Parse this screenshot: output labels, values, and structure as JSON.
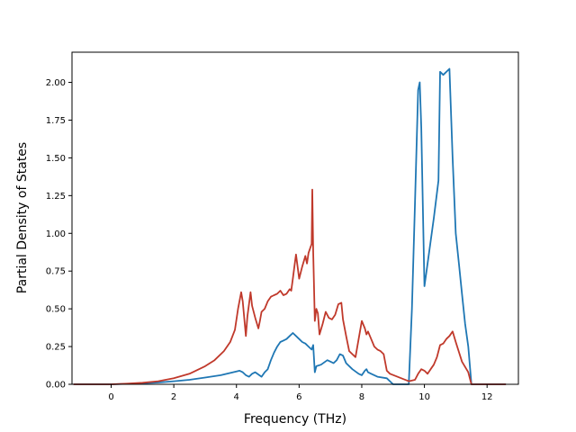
{
  "chart_data": {
    "type": "line",
    "title": "",
    "xlabel": "Frequency (THz)",
    "ylabel": "Partial Density of States",
    "xlim": [
      -1.25,
      13.0
    ],
    "ylim": [
      0.0,
      2.2
    ],
    "xticks": [
      0,
      2,
      4,
      6,
      8,
      10,
      12
    ],
    "xtick_labels": [
      "0",
      "2",
      "4",
      "6",
      "8",
      "10",
      "12"
    ],
    "yticks": [
      0.0,
      0.25,
      0.5,
      0.75,
      1.0,
      1.25,
      1.5,
      1.75,
      2.0
    ],
    "ytick_labels": [
      "0.00",
      "0.25",
      "0.50",
      "0.75",
      "1.00",
      "1.25",
      "1.50",
      "1.75",
      "2.00"
    ],
    "grid": false,
    "series": [
      {
        "color": "#1f77b4",
        "x": [
          -1.2,
          0.0,
          0.5,
          1.0,
          1.5,
          2.0,
          2.5,
          3.0,
          3.5,
          3.8,
          4.0,
          4.1,
          4.2,
          4.3,
          4.4,
          4.5,
          4.6,
          4.7,
          4.8,
          4.9,
          5.0,
          5.1,
          5.2,
          5.3,
          5.4,
          5.5,
          5.6,
          5.7,
          5.8,
          5.9,
          6.0,
          6.1,
          6.2,
          6.3,
          6.4,
          6.45,
          6.5,
          6.55,
          6.7,
          6.9,
          7.0,
          7.1,
          7.2,
          7.3,
          7.4,
          7.5,
          7.7,
          7.9,
          8.0,
          8.1,
          8.15,
          8.2,
          8.3,
          8.5,
          8.8,
          9.0,
          9.3,
          9.5,
          9.6,
          9.7,
          9.8,
          9.85,
          9.9,
          10.0,
          10.1,
          10.3,
          10.45,
          10.5,
          10.6,
          10.75,
          10.8,
          10.9,
          11.0,
          11.1,
          11.2,
          11.3,
          11.4,
          11.5,
          12.6
        ],
        "y": [
          0.0,
          0.0,
          0.003,
          0.007,
          0.012,
          0.02,
          0.03,
          0.045,
          0.06,
          0.075,
          0.085,
          0.09,
          0.08,
          0.06,
          0.05,
          0.07,
          0.08,
          0.065,
          0.05,
          0.08,
          0.1,
          0.16,
          0.21,
          0.25,
          0.28,
          0.29,
          0.3,
          0.32,
          0.34,
          0.32,
          0.3,
          0.28,
          0.27,
          0.25,
          0.23,
          0.26,
          0.08,
          0.12,
          0.13,
          0.16,
          0.15,
          0.14,
          0.16,
          0.2,
          0.19,
          0.14,
          0.1,
          0.07,
          0.06,
          0.09,
          0.1,
          0.08,
          0.07,
          0.05,
          0.04,
          0.0,
          0.0,
          0.0,
          0.5,
          1.2,
          1.95,
          2.0,
          1.7,
          0.65,
          0.8,
          1.1,
          1.35,
          2.07,
          2.05,
          2.08,
          2.09,
          1.5,
          1.0,
          0.8,
          0.6,
          0.4,
          0.25,
          0.0,
          0.0
        ]
      },
      {
        "color": "#c0392b",
        "x": [
          -1.2,
          0.0,
          0.5,
          1.0,
          1.5,
          2.0,
          2.5,
          3.0,
          3.3,
          3.6,
          3.8,
          3.95,
          4.05,
          4.15,
          4.2,
          4.3,
          4.35,
          4.45,
          4.5,
          4.6,
          4.7,
          4.75,
          4.8,
          4.9,
          5.0,
          5.1,
          5.2,
          5.3,
          5.4,
          5.5,
          5.6,
          5.7,
          5.75,
          5.8,
          5.85,
          5.9,
          6.0,
          6.1,
          6.2,
          6.25,
          6.3,
          6.4,
          6.42,
          6.45,
          6.5,
          6.55,
          6.6,
          6.65,
          6.75,
          6.85,
          6.95,
          7.05,
          7.15,
          7.25,
          7.35,
          7.4,
          7.5,
          7.6,
          7.7,
          7.8,
          7.9,
          8.0,
          8.1,
          8.15,
          8.2,
          8.3,
          8.4,
          8.5,
          8.6,
          8.7,
          8.8,
          8.9,
          9.5,
          9.7,
          9.8,
          9.9,
          10.0,
          10.1,
          10.2,
          10.3,
          10.4,
          10.5,
          10.6,
          10.7,
          10.8,
          10.9,
          11.0,
          11.2,
          11.4,
          11.5,
          12.6
        ],
        "y": [
          0.0,
          0.0,
          0.004,
          0.01,
          0.02,
          0.04,
          0.07,
          0.12,
          0.16,
          0.22,
          0.28,
          0.36,
          0.5,
          0.61,
          0.55,
          0.32,
          0.45,
          0.61,
          0.52,
          0.44,
          0.37,
          0.42,
          0.48,
          0.5,
          0.55,
          0.58,
          0.59,
          0.6,
          0.62,
          0.59,
          0.6,
          0.63,
          0.62,
          0.7,
          0.78,
          0.86,
          0.7,
          0.78,
          0.85,
          0.8,
          0.87,
          0.93,
          1.29,
          0.88,
          0.42,
          0.5,
          0.47,
          0.33,
          0.4,
          0.48,
          0.44,
          0.43,
          0.46,
          0.53,
          0.54,
          0.43,
          0.32,
          0.22,
          0.2,
          0.18,
          0.3,
          0.42,
          0.37,
          0.33,
          0.35,
          0.3,
          0.25,
          0.23,
          0.22,
          0.2,
          0.09,
          0.07,
          0.02,
          0.03,
          0.07,
          0.1,
          0.09,
          0.07,
          0.1,
          0.13,
          0.18,
          0.26,
          0.27,
          0.3,
          0.32,
          0.35,
          0.28,
          0.15,
          0.08,
          0.0,
          0.0
        ]
      }
    ]
  }
}
